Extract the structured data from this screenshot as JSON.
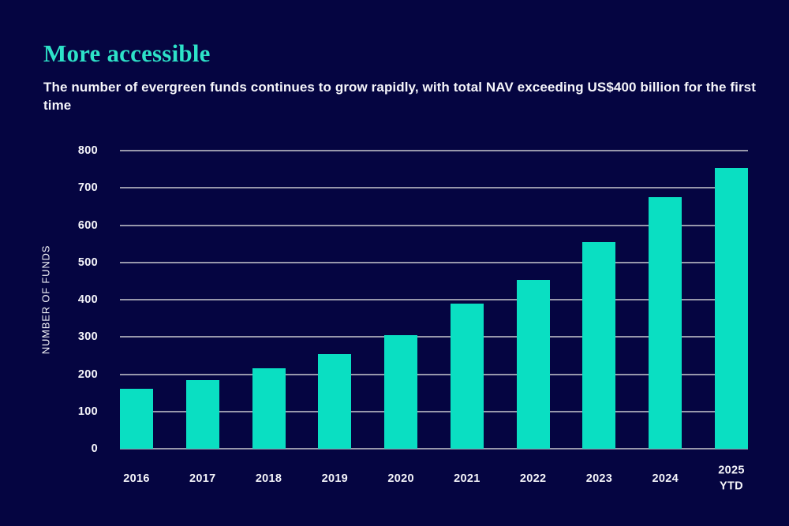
{
  "page": {
    "background_color": "#050541",
    "title": "More accessible",
    "title_color": "#2de2c8",
    "subtitle": "The number of evergreen funds continues to grow rapidly, with total NAV exceeding US$400 billion for the first time",
    "text_color": "#f5f5fa"
  },
  "chart_data": {
    "type": "bar",
    "title": "More accessible",
    "subtitle": "The number of evergreen funds continues to grow rapidly, with total NAV exceeding US$400 billion for the first time",
    "xlabel": "",
    "ylabel": "NUMBER OF FUNDS",
    "categories": [
      "2016",
      "2017",
      "2018",
      "2019",
      "2020",
      "2021",
      "2022",
      "2023",
      "2024",
      "2025\nYTD"
    ],
    "values": [
      160,
      185,
      215,
      255,
      305,
      390,
      453,
      555,
      675,
      753
    ],
    "ylim": [
      0,
      800
    ],
    "yticks": [
      0,
      100,
      200,
      300,
      400,
      500,
      600,
      700,
      800
    ],
    "grid": true,
    "legend": "none",
    "bar_color": "#0adfc2",
    "gridline_color": "#9898ab",
    "tick_label_color": "#f5f5fa"
  }
}
